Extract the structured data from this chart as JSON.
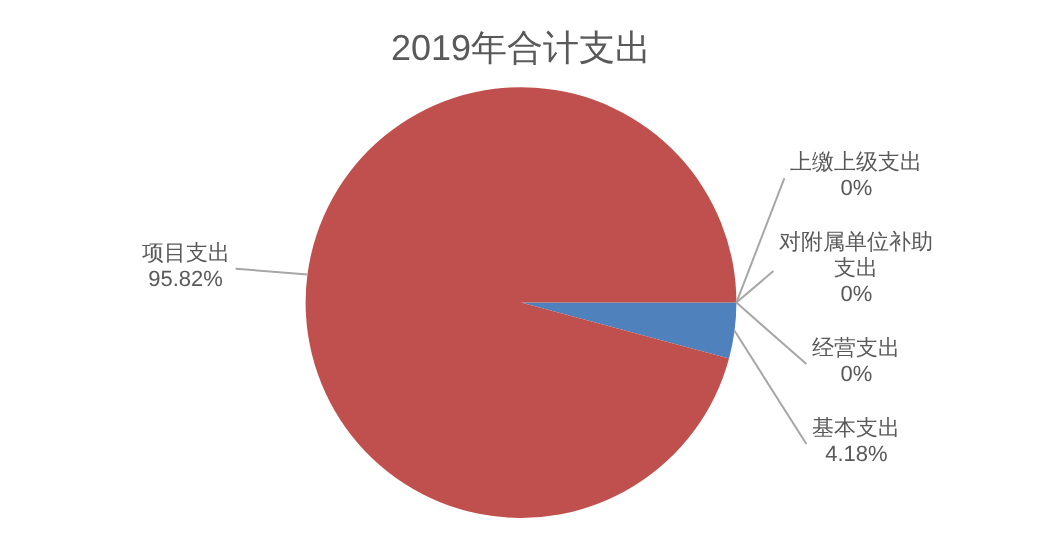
{
  "chart_data": {
    "type": "pie",
    "title": "2019年合计支出",
    "categories": [
      "基本支出",
      "项目支出",
      "上缴上级支出",
      "对附属单位补助支出",
      "经营支出"
    ],
    "values": [
      4.18,
      95.82,
      0,
      0,
      0
    ],
    "colors": [
      "#4f81bd",
      "#c0504d",
      "#9bbb59",
      "#8064a2",
      "#4bacc6"
    ],
    "value_labels": [
      "4.18%",
      "95.82%",
      "0%",
      "0%",
      "0%"
    ],
    "legend": false
  }
}
